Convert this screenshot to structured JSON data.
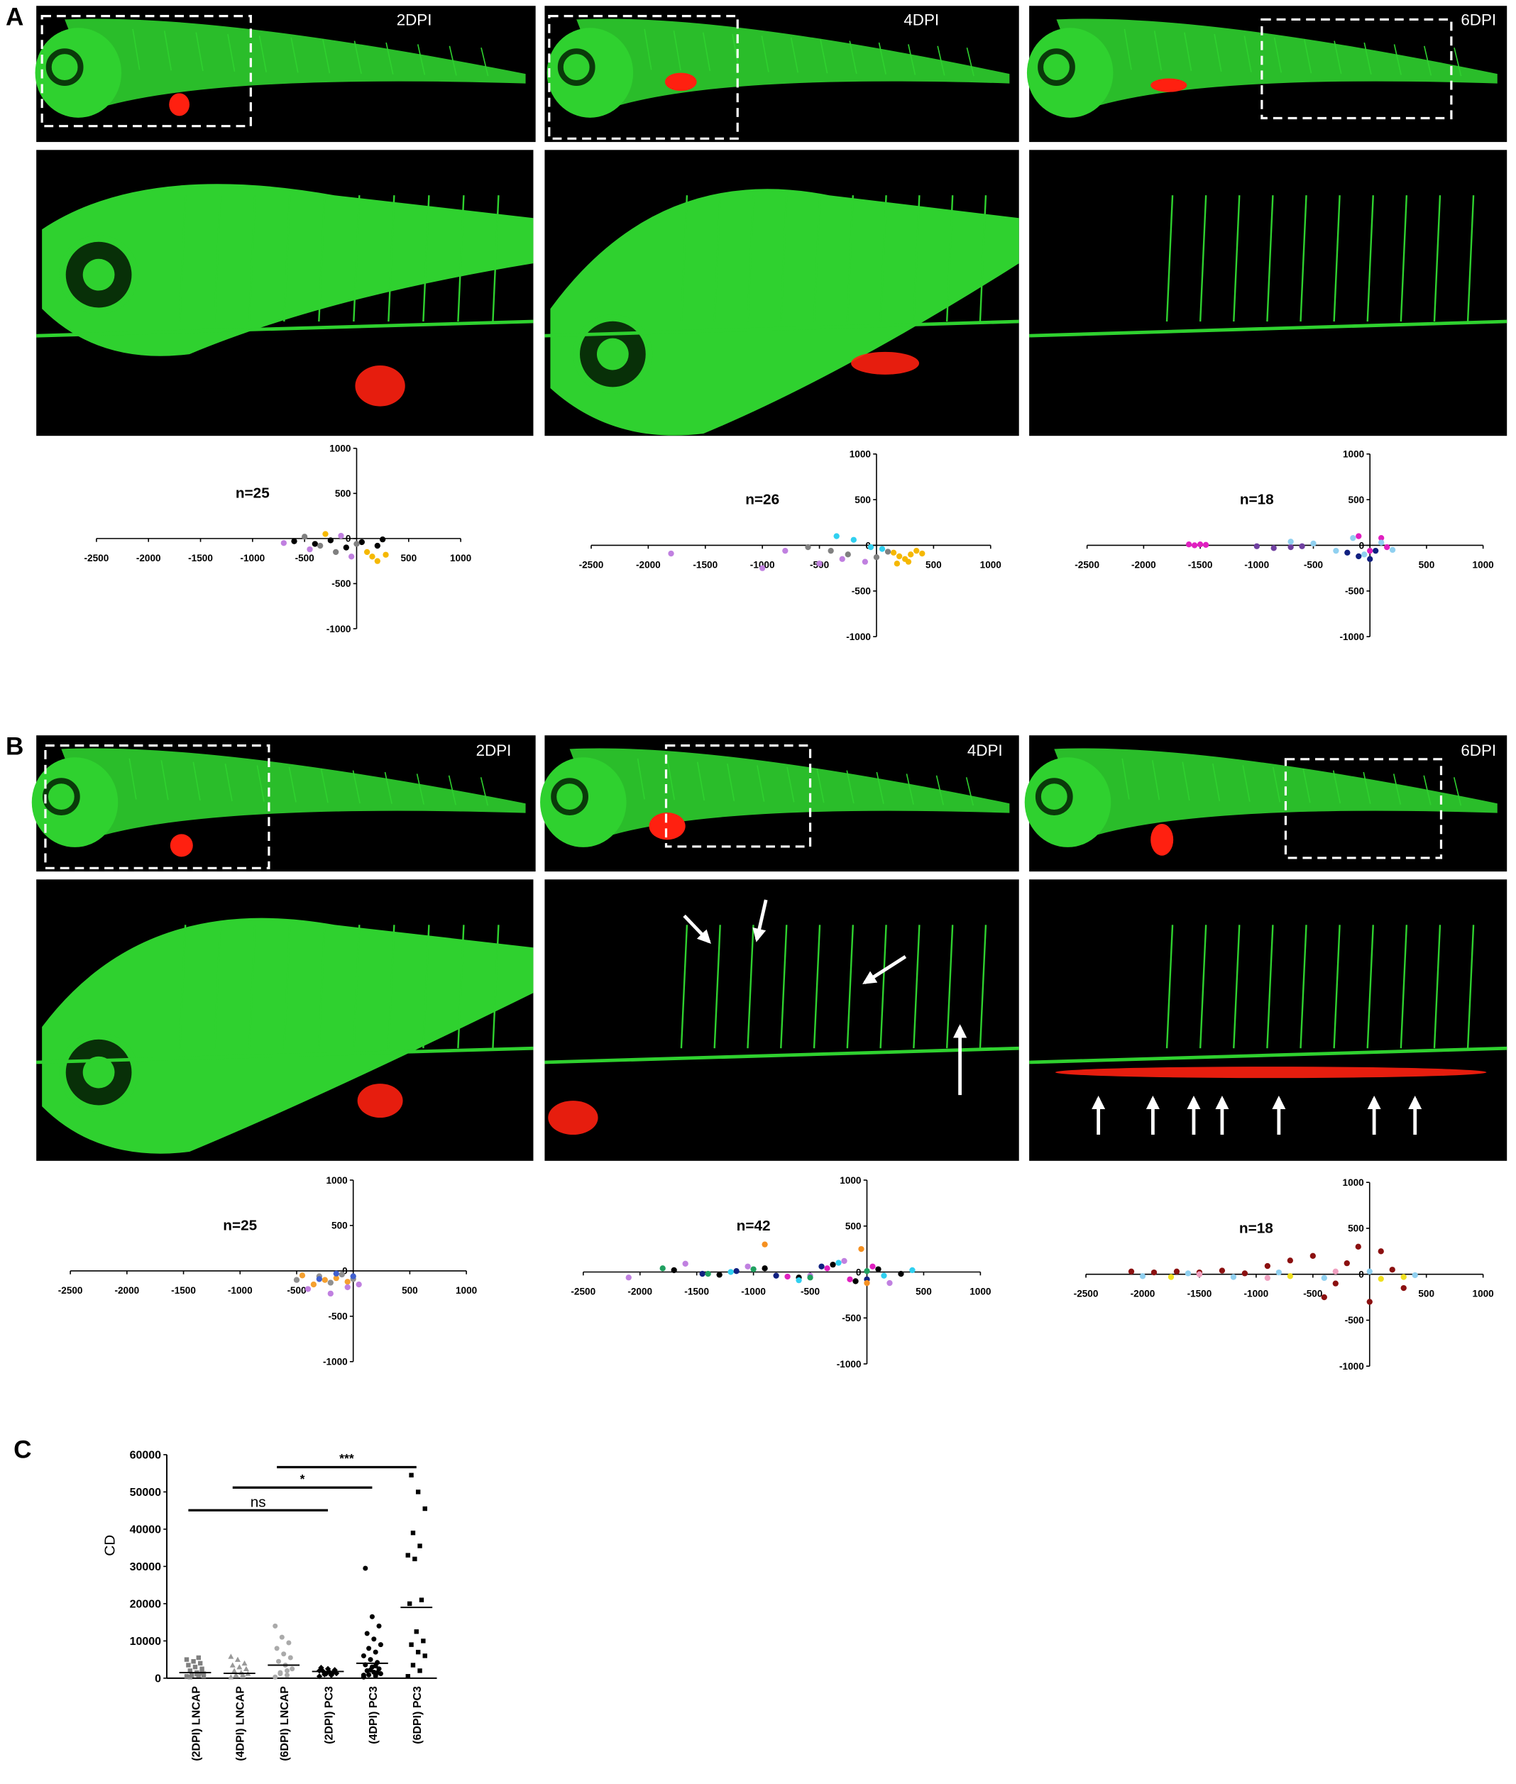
{
  "figure": {
    "panel_labels": [
      "A",
      "B",
      "C"
    ],
    "image_labels": [
      [
        "2DPI",
        "4DPI",
        "6DPI"
      ],
      [
        "2DPI",
        "4DPI",
        "6DPI"
      ]
    ]
  },
  "chart_data": [
    {
      "type": "scatter",
      "annotation": "n=25",
      "xlim": [
        -2500,
        1000
      ],
      "ylim": [
        -1000,
        1000
      ],
      "xticks": [
        -2500,
        -2000,
        -1500,
        -1000,
        -500,
        500,
        1000
      ],
      "yticks": [
        -1000,
        -500,
        0,
        500,
        1000
      ],
      "series": [
        {
          "color": "#000000",
          "x": [
            -600,
            -400,
            -250,
            -100,
            50,
            200,
            250
          ],
          "values": [
            -30,
            -60,
            -20,
            -100,
            -40,
            -80,
            -10
          ]
        },
        {
          "color": "#f5b800",
          "x": [
            -300,
            100,
            150,
            200,
            280
          ],
          "values": [
            50,
            -150,
            -200,
            -250,
            -180
          ]
        },
        {
          "color": "#c080e0",
          "x": [
            -700,
            -450,
            -150,
            -50
          ],
          "values": [
            -50,
            -120,
            30,
            -200
          ]
        },
        {
          "color": "#808080",
          "x": [
            -500,
            -350,
            -200,
            0
          ],
          "values": [
            20,
            -80,
            -150,
            -60
          ]
        }
      ]
    },
    {
      "type": "scatter",
      "annotation": "n=26",
      "xlim": [
        -2500,
        1000
      ],
      "ylim": [
        -1000,
        1000
      ],
      "xticks": [
        -2500,
        -2000,
        -1500,
        -1000,
        -500,
        500,
        1000
      ],
      "yticks": [
        -1000,
        -500,
        0,
        500,
        1000
      ],
      "series": [
        {
          "color": "#f5b800",
          "x": [
            150,
            200,
            250,
            300,
            350,
            400,
            180,
            280
          ],
          "values": [
            -80,
            -120,
            -150,
            -100,
            -60,
            -90,
            -200,
            -180
          ]
        },
        {
          "color": "#c080e0",
          "x": [
            -1800,
            -1000,
            -800,
            -500,
            -300,
            -100
          ],
          "values": [
            -90,
            -250,
            -60,
            -200,
            -150,
            -180
          ]
        },
        {
          "color": "#30d0f0",
          "x": [
            -350,
            -200,
            -50,
            50
          ],
          "values": [
            100,
            60,
            -20,
            -40
          ]
        },
        {
          "color": "#808080",
          "x": [
            -600,
            -400,
            -250,
            0,
            100
          ],
          "values": [
            -20,
            -60,
            -100,
            -130,
            -70
          ]
        }
      ]
    },
    {
      "type": "scatter",
      "annotation": "n=18",
      "xlim": [
        -2500,
        1000
      ],
      "ylim": [
        -1000,
        1000
      ],
      "xticks": [
        -2500,
        -2000,
        -1500,
        -1000,
        -500,
        500,
        1000
      ],
      "yticks": [
        -1000,
        -500,
        0,
        500,
        1000
      ],
      "series": [
        {
          "color": "#e020c0",
          "x": [
            -1600,
            -1550,
            -1500,
            -1450,
            -100,
            0,
            100,
            150
          ],
          "values": [
            10,
            0,
            10,
            5,
            100,
            -60,
            80,
            -20
          ]
        },
        {
          "color": "#7040a0",
          "x": [
            -1000,
            -850,
            -700,
            -600
          ],
          "values": [
            -10,
            -30,
            -20,
            -10
          ]
        },
        {
          "color": "#90d0f0",
          "x": [
            -700,
            -500,
            -300,
            -150,
            -50,
            100,
            200
          ],
          "values": [
            40,
            20,
            -60,
            80,
            -100,
            30,
            -50
          ]
        },
        {
          "color": "#102080",
          "x": [
            -200,
            -100,
            0,
            50
          ],
          "values": [
            -80,
            -120,
            -150,
            -60
          ]
        }
      ]
    },
    {
      "type": "scatter",
      "annotation": "n=25",
      "xlim": [
        -2500,
        1000
      ],
      "ylim": [
        -1000,
        1000
      ],
      "xticks": [
        -2500,
        -2000,
        -1500,
        -1000,
        -500,
        500,
        1000
      ],
      "yticks": [
        -1000,
        -500,
        0,
        500,
        1000
      ],
      "series": [
        {
          "color": "#f5a030",
          "x": [
            -450,
            -350,
            -250,
            -150,
            -50
          ],
          "values": [
            -50,
            -150,
            -100,
            -80,
            -120
          ]
        },
        {
          "color": "#909090",
          "x": [
            -500,
            -300,
            -200,
            -100,
            0
          ],
          "values": [
            -100,
            -60,
            -130,
            -40,
            -90
          ]
        },
        {
          "color": "#c080e0",
          "x": [
            -400,
            -200,
            -50,
            50
          ],
          "values": [
            -200,
            -250,
            -180,
            -150
          ]
        },
        {
          "color": "#4060d0",
          "x": [
            -300,
            -150,
            0
          ],
          "values": [
            -90,
            -30,
            -60
          ]
        }
      ]
    },
    {
      "type": "scatter",
      "annotation": "n=42",
      "xlim": [
        -2500,
        1000
      ],
      "ylim": [
        -1000,
        1000
      ],
      "xticks": [
        -2500,
        -2000,
        -1500,
        -1000,
        -500,
        500,
        1000
      ],
      "yticks": [
        -1000,
        -500,
        0,
        500,
        1000
      ],
      "series": [
        {
          "color": "#000000",
          "x": [
            -1700,
            -1300,
            -900,
            -600,
            -300,
            -100,
            100,
            300
          ],
          "values": [
            20,
            -30,
            40,
            -60,
            80,
            -100,
            30,
            -20
          ]
        },
        {
          "color": "#102080",
          "x": [
            -1450,
            -1150,
            -800,
            -400,
            0
          ],
          "values": [
            -20,
            10,
            -40,
            60,
            -80
          ]
        },
        {
          "color": "#c080e0",
          "x": [
            -2100,
            -1600,
            -1050,
            -500,
            -200,
            200
          ],
          "values": [
            -60,
            90,
            60,
            -40,
            120,
            -120
          ]
        },
        {
          "color": "#e020c0",
          "x": [
            -700,
            -350,
            -150,
            50
          ],
          "values": [
            -50,
            40,
            -80,
            60
          ]
        },
        {
          "color": "#f59020",
          "x": [
            -900,
            0,
            -50
          ],
          "values": [
            300,
            -120,
            250
          ]
        },
        {
          "color": "#30d0f0",
          "x": [
            -1200,
            -600,
            -250,
            150,
            400
          ],
          "values": [
            0,
            -90,
            100,
            -40,
            20
          ]
        },
        {
          "color": "#20a060",
          "x": [
            -1800,
            -1400,
            -1000,
            -500,
            0
          ],
          "values": [
            40,
            -20,
            30,
            -60,
            10
          ]
        }
      ]
    },
    {
      "type": "scatter",
      "annotation": "n=18",
      "xlim": [
        -2500,
        1000
      ],
      "ylim": [
        -1000,
        1000
      ],
      "xticks": [
        -2500,
        -2000,
        -1500,
        -1000,
        -500,
        500,
        1000
      ],
      "yticks": [
        -1000,
        -500,
        0,
        500,
        1000
      ],
      "series": [
        {
          "color": "#8b1010",
          "x": [
            -2100,
            -1900,
            -1700,
            -1500,
            -1300,
            -1100,
            -900,
            -700,
            -500,
            -300,
            -100,
            100,
            300,
            -400,
            0,
            -200,
            200
          ],
          "values": [
            30,
            20,
            30,
            20,
            40,
            10,
            90,
            150,
            200,
            -100,
            300,
            250,
            -150,
            -250,
            -300,
            120,
            50
          ]
        },
        {
          "color": "#90d0f0",
          "x": [
            -2000,
            -1600,
            -1200,
            -800,
            -400,
            0,
            400
          ],
          "values": [
            -20,
            10,
            -30,
            20,
            -40,
            30,
            -10
          ]
        },
        {
          "color": "#f0e020",
          "x": [
            -1750,
            -700,
            100,
            300
          ],
          "values": [
            -30,
            -20,
            -50,
            -30
          ]
        },
        {
          "color": "#f0a0c0",
          "x": [
            -1500,
            -900,
            -300
          ],
          "values": [
            0,
            -40,
            30
          ]
        }
      ]
    },
    {
      "type": "dot",
      "ylabel": "CD",
      "categories": [
        "(2DPI) LNCAP",
        "(4DPI) LNCAP",
        "(6DPI) LNCAP",
        "(2DPI) PC3",
        "(4DPI) PC3",
        "(6DPI) PC3"
      ],
      "colors": [
        "#808080",
        "#999999",
        "#aaaaaa",
        "#000000",
        "#000000",
        "#000000"
      ],
      "markers": [
        "square",
        "triangle",
        "circle",
        "diamond",
        "circle",
        "square"
      ],
      "points": [
        [
          500,
          800,
          1000,
          1200,
          1500,
          2000,
          2500,
          3000,
          3500,
          4000,
          4500,
          5000,
          5500,
          800,
          600,
          1100,
          300,
          1400
        ],
        [
          300,
          600,
          900,
          1200,
          1500,
          2000,
          2500,
          3000,
          3500,
          4000,
          5000,
          5800,
          1000,
          700
        ],
        [
          300,
          800,
          1500,
          2500,
          3500,
          4500,
          5500,
          6500,
          8000,
          9500,
          11000,
          14000,
          2000,
          1200
        ],
        [
          500,
          800,
          1000,
          1300,
          1600,
          1900,
          2200,
          2500,
          2800,
          1500,
          1200,
          2000
        ],
        [
          300,
          600,
          900,
          1200,
          1600,
          2000,
          2500,
          3000,
          3600,
          4200,
          5000,
          6000,
          7000,
          8000,
          9000,
          10500,
          12000,
          14000,
          16500,
          29500,
          1500,
          2200,
          800,
          3300
        ],
        [
          500,
          2000,
          3500,
          6000,
          7000,
          9000,
          10000,
          12500,
          20000,
          21000,
          32000,
          33000,
          35500,
          39000,
          45500,
          50000,
          54500
        ]
      ],
      "means": [
        1500,
        1300,
        3500,
        1800,
        4000,
        19000
      ],
      "ylim": [
        0,
        60000
      ],
      "yticks": [
        0,
        10000,
        20000,
        30000,
        40000,
        50000,
        60000
      ],
      "annotations": [
        "ns",
        "*",
        "***"
      ]
    }
  ]
}
